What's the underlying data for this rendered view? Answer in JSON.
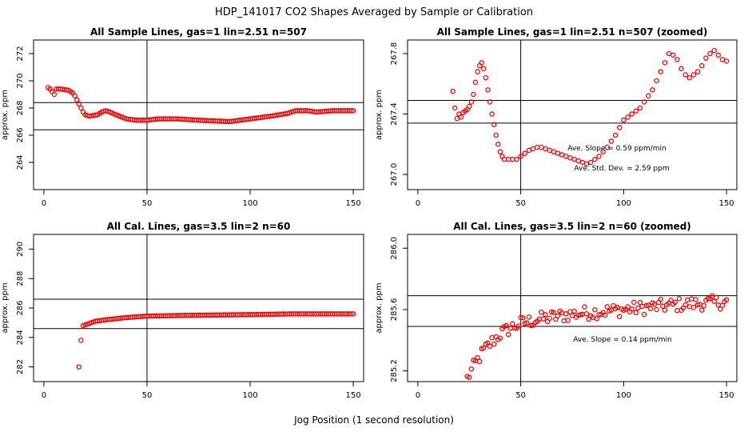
{
  "figure": {
    "title": "HDP_141017  CO2 Shapes Averaged by Sample or Calibration",
    "xlabel": "Jog Position (1 second resolution)"
  },
  "colors": {
    "points": "#ff0000",
    "lines": "#000000"
  },
  "chart_data": [
    {
      "type": "scatter",
      "title": "All Sample Lines, gas=1 lin=2.51 n=507",
      "ylabel": "approx. ppm",
      "xlim": [
        -5,
        155
      ],
      "ylim": [
        262,
        273
      ],
      "xticks": [
        0,
        50,
        100,
        150
      ],
      "yticks": [
        264,
        266,
        268,
        270,
        272
      ],
      "hlines": [
        266.4,
        268.4
      ],
      "vlines": [
        50
      ],
      "annotations": [],
      "series": [
        {
          "name": "sample",
          "knots": [
            [
              2,
              269.5
            ],
            [
              3,
              269.4
            ],
            [
              4,
              269.2
            ],
            [
              5,
              269.0
            ],
            [
              6,
              269.4
            ],
            [
              8,
              269.4
            ],
            [
              12,
              269.3
            ],
            [
              14,
              269.1
            ],
            [
              15,
              268.9
            ],
            [
              16,
              268.6
            ],
            [
              17,
              268.3
            ],
            [
              18,
              268.0
            ],
            [
              19,
              267.7
            ],
            [
              20,
              267.5
            ],
            [
              22,
              267.4
            ],
            [
              26,
              267.5
            ],
            [
              28,
              267.7
            ],
            [
              30,
              267.8
            ],
            [
              32,
              267.7
            ],
            [
              35,
              267.5
            ],
            [
              40,
              267.2
            ],
            [
              45,
              267.1
            ],
            [
              50,
              267.1
            ],
            [
              55,
              267.2
            ],
            [
              65,
              267.2
            ],
            [
              75,
              267.1
            ],
            [
              90,
              267.0
            ],
            [
              100,
              267.2
            ],
            [
              110,
              267.4
            ],
            [
              118,
              267.6
            ],
            [
              122,
              267.8
            ],
            [
              128,
              267.8
            ],
            [
              132,
              267.7
            ],
            [
              140,
              267.8
            ],
            [
              150,
              267.8
            ]
          ],
          "x_start": 2,
          "x_end": 150
        }
      ]
    },
    {
      "type": "scatter",
      "title": "All Sample Lines, gas=1 lin=2.51 n=507 (zoomed)",
      "ylabel": "approx. ppm",
      "xlim": [
        -5,
        155
      ],
      "ylim": [
        266.9,
        267.89
      ],
      "xticks": [
        0,
        50,
        100,
        150
      ],
      "yticks": [
        267.0,
        267.4,
        267.8
      ],
      "hlines": [
        267.49,
        267.34
      ],
      "vlines": [
        50
      ],
      "annotations": [
        "Ave. Slope =  0.59  ppm/min",
        "Ave. Std. Dev. =  2.59  ppm"
      ],
      "series": [
        {
          "name": "sample-zoom",
          "points": [
            [
              17,
              267.55
            ],
            [
              18,
              267.44
            ],
            [
              19,
              267.37
            ],
            [
              20,
              267.4
            ],
            [
              21,
              267.38
            ],
            [
              22,
              267.41
            ],
            [
              23,
              267.42
            ],
            [
              24,
              267.43
            ],
            [
              25,
              267.45
            ],
            [
              26,
              267.48
            ],
            [
              27,
              267.53
            ],
            [
              28,
              267.61
            ],
            [
              29,
              267.68
            ],
            [
              30,
              267.72
            ],
            [
              31,
              267.74
            ],
            [
              32,
              267.7
            ],
            [
              33,
              267.64
            ],
            [
              34,
              267.56
            ],
            [
              35,
              267.48
            ],
            [
              36,
              267.4
            ],
            [
              37,
              267.33
            ],
            [
              38,
              267.26
            ],
            [
              39,
              267.2
            ],
            [
              40,
              267.15
            ],
            [
              41,
              267.12
            ],
            [
              42,
              267.1
            ],
            [
              44,
              267.1
            ],
            [
              46,
              267.1
            ],
            [
              48,
              267.1
            ],
            [
              50,
              267.12
            ],
            [
              52,
              267.14
            ],
            [
              54,
              267.16
            ],
            [
              56,
              267.17
            ],
            [
              58,
              267.18
            ],
            [
              60,
              267.18
            ],
            [
              62,
              267.17
            ],
            [
              64,
              267.16
            ],
            [
              66,
              267.15
            ],
            [
              68,
              267.14
            ],
            [
              70,
              267.13
            ],
            [
              72,
              267.12
            ],
            [
              74,
              267.11
            ],
            [
              76,
              267.1
            ],
            [
              78,
              267.09
            ],
            [
              80,
              267.08
            ],
            [
              82,
              267.07
            ],
            [
              84,
              267.08
            ],
            [
              86,
              267.1
            ],
            [
              88,
              267.12
            ],
            [
              90,
              267.15
            ],
            [
              92,
              267.18
            ],
            [
              94,
              267.22
            ],
            [
              96,
              267.26
            ],
            [
              98,
              267.31
            ],
            [
              100,
              267.36
            ],
            [
              102,
              267.38
            ],
            [
              104,
              267.4
            ],
            [
              106,
              267.42
            ],
            [
              108,
              267.44
            ],
            [
              110,
              267.48
            ],
            [
              112,
              267.52
            ],
            [
              114,
              267.56
            ],
            [
              116,
              267.62
            ],
            [
              118,
              267.68
            ],
            [
              120,
              267.74
            ],
            [
              122,
              267.8
            ],
            [
              124,
              267.79
            ],
            [
              126,
              267.76
            ],
            [
              128,
              267.7
            ],
            [
              130,
              267.66
            ],
            [
              132,
              267.64
            ],
            [
              134,
              267.66
            ],
            [
              136,
              267.68
            ],
            [
              138,
              267.72
            ],
            [
              140,
              267.77
            ],
            [
              142,
              267.8
            ],
            [
              144,
              267.82
            ],
            [
              146,
              267.79
            ],
            [
              148,
              267.76
            ],
            [
              150,
              267.75
            ]
          ],
          "x_start": 17,
          "x_end": 150
        }
      ]
    },
    {
      "type": "scatter",
      "title": "All Cal. Lines, gas=3.5 lin=2 n=60",
      "ylabel": "approx. ppm",
      "xlim": [
        -5,
        155
      ],
      "ylim": [
        281,
        291
      ],
      "xticks": [
        0,
        50,
        100,
        150
      ],
      "yticks": [
        282,
        284,
        286,
        288,
        290
      ],
      "hlines": [
        284.6,
        286.6
      ],
      "vlines": [
        50
      ],
      "annotations": [],
      "series": [
        {
          "name": "cal",
          "extra_points": [
            [
              17,
              282.0
            ],
            [
              18,
              283.8
            ]
          ],
          "knots": [
            [
              19,
              284.8
            ],
            [
              21,
              284.9
            ],
            [
              25,
              285.1
            ],
            [
              30,
              285.2
            ],
            [
              40,
              285.35
            ],
            [
              50,
              285.45
            ],
            [
              70,
              285.5
            ],
            [
              100,
              285.55
            ],
            [
              120,
              285.6
            ],
            [
              150,
              285.6
            ]
          ],
          "x_start": 19,
          "x_end": 150
        }
      ]
    },
    {
      "type": "scatter",
      "title": "All Cal. Lines, gas=3.5 lin=2 n=60 (zoomed)",
      "ylabel": "approx. ppm",
      "xlim": [
        -5,
        155
      ],
      "ylim": [
        285.13,
        286.09
      ],
      "xticks": [
        0,
        50,
        100,
        150
      ],
      "yticks": [
        285.2,
        285.6,
        286.0
      ],
      "hlines": [
        285.69,
        285.49
      ],
      "vlines": [
        50
      ],
      "annotations": [
        "Ave. Slope =  0.14  ppm/min"
      ],
      "series": [
        {
          "name": "cal-zoom",
          "knots": [
            [
              24,
              285.15
            ],
            [
              28,
              285.25
            ],
            [
              32,
              285.33
            ],
            [
              36,
              285.39
            ],
            [
              40,
              285.44
            ],
            [
              45,
              285.48
            ],
            [
              50,
              285.51
            ],
            [
              60,
              285.54
            ],
            [
              75,
              285.57
            ],
            [
              100,
              285.6
            ],
            [
              125,
              285.63
            ],
            [
              150,
              285.65
            ]
          ],
          "noise": 0.045,
          "x_start": 24,
          "x_end": 150
        }
      ]
    }
  ]
}
